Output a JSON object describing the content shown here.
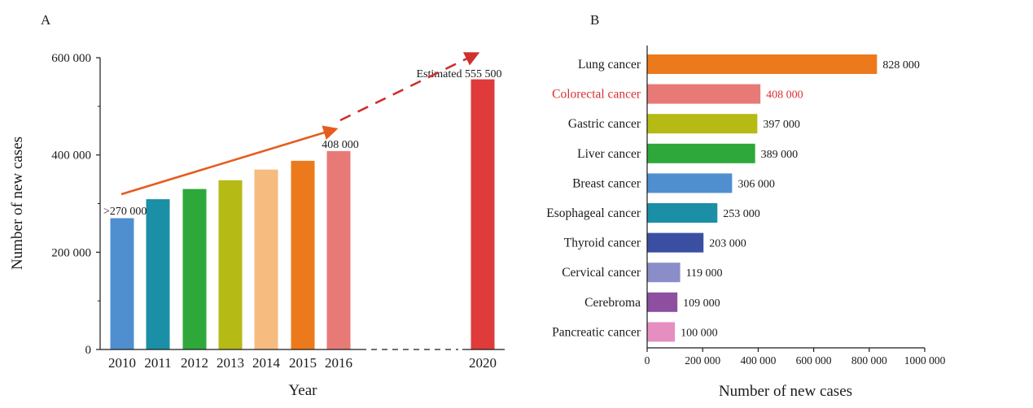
{
  "chart_data": [
    {
      "id": "A",
      "type": "bar",
      "panel_label": "A",
      "xlabel": "Year",
      "ylabel": "Number of new cases",
      "ylim": [
        0,
        600000
      ],
      "yticks": [
        0,
        200000,
        400000,
        600000
      ],
      "ytick_labels": [
        "0",
        "200 000",
        "400 000",
        "600 000"
      ],
      "categories": [
        "2010",
        "2011",
        "2012",
        "2013",
        "2014",
        "2015",
        "2016",
        "2020"
      ],
      "values": [
        270000,
        309000,
        330000,
        348000,
        370000,
        388000,
        408000,
        555500
      ],
      "colors": [
        "#4f8fd0",
        "#1a8fa5",
        "#2ea83a",
        "#b5ba15",
        "#f5bb7f",
        "#ec7a1c",
        "#e77a77",
        "#df3b3b"
      ],
      "annotations": [
        {
          "category": "2010",
          "text": ">270 000"
        },
        {
          "category": "2016",
          "text": "408 000"
        },
        {
          "category": "2020",
          "text": "Estimated 555 500"
        }
      ],
      "trend_arrow_color": "#e65c1e",
      "dashed_arrow_color": "#d03030",
      "grid": false
    },
    {
      "id": "B",
      "type": "bar",
      "orientation": "horizontal",
      "panel_label": "B",
      "xlabel": "Number of new cases",
      "xlim": [
        0,
        1000000
      ],
      "xticks": [
        0,
        200000,
        400000,
        600000,
        800000,
        1000000
      ],
      "xtick_labels": [
        "0",
        "200 000",
        "400 000",
        "600 000",
        "800 000",
        "1000 000"
      ],
      "categories": [
        "Lung cancer",
        "Colorectal cancer",
        "Gastric cancer",
        "Liver cancer",
        "Breast cancer",
        "Esophageal cancer",
        "Thyroid cancer",
        "Cervical cancer",
        "Cerebroma",
        "Pancreatic cancer"
      ],
      "values": [
        828000,
        408000,
        397000,
        389000,
        306000,
        253000,
        203000,
        119000,
        109000,
        100000
      ],
      "value_labels": [
        "828 000",
        "408 000",
        "397 000",
        "389 000",
        "306 000",
        "253 000",
        "203 000",
        "119 000",
        "109 000",
        "100 000"
      ],
      "colors": [
        "#ec7a1c",
        "#e77a77",
        "#b5ba15",
        "#2ea83a",
        "#4f8fd0",
        "#1a8fa5",
        "#3a4fa2",
        "#8a8dc8",
        "#8e4fa0",
        "#e58fc0"
      ],
      "highlight_category": "Colorectal cancer",
      "highlight_color": "#d93030",
      "grid": false
    }
  ]
}
